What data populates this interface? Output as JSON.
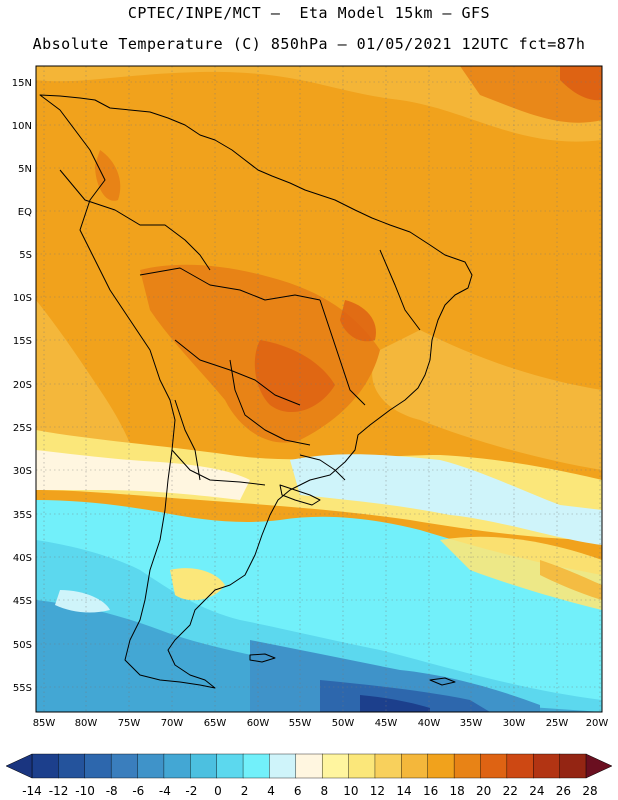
{
  "header": {
    "line1": "CPTEC/INPE/MCT –  Eta Model 15km – GFS",
    "line2": "Absolute Temperature (C) 850hPa – 01/05/2021 12UTC fct=87h"
  },
  "map": {
    "lat_labels": [
      "15N",
      "10N",
      "5N",
      "EQ",
      "5S",
      "10S",
      "15S",
      "20S",
      "25S",
      "30S",
      "35S",
      "40S",
      "45S",
      "50S",
      "55S"
    ],
    "lon_labels": [
      "85W",
      "80W",
      "75W",
      "70W",
      "65W",
      "60W",
      "55W",
      "50W",
      "45W",
      "40W",
      "35W",
      "30W",
      "25W",
      "20W"
    ],
    "grid_style": "dotted"
  },
  "colorbar": {
    "labels": [
      "-14",
      "-12",
      "-10",
      "-8",
      "-6",
      "-4",
      "-2",
      "0",
      "2",
      "4",
      "6",
      "8",
      "10",
      "12",
      "14",
      "16",
      "18",
      "20",
      "22",
      "24",
      "26",
      "28"
    ],
    "colors": [
      "#1c3f8c",
      "#24539c",
      "#2d67ad",
      "#3a7ebd",
      "#3f93c9",
      "#43a7d4",
      "#4cc0e0",
      "#5cd8ee",
      "#72f0fa",
      "#cff4fa",
      "#fff6e0",
      "#fff59f",
      "#fbe77a",
      "#f8d05c",
      "#f4b73b",
      "#f1a21c",
      "#e88316",
      "#de6313",
      "#cd4813",
      "#b23413",
      "#942513",
      "#72171a"
    ]
  }
}
